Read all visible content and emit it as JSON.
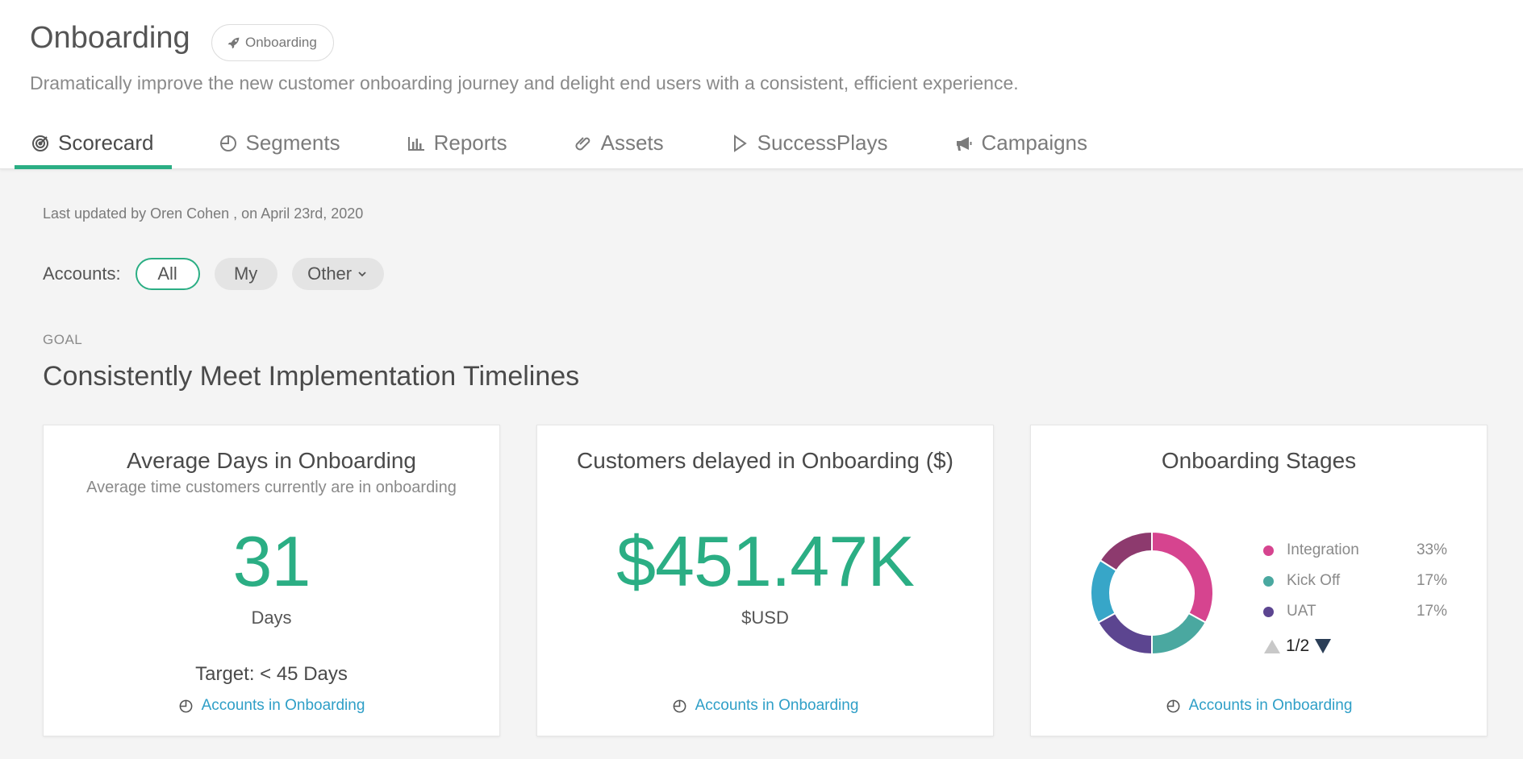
{
  "header": {
    "title": "Onboarding",
    "badge_label": "Onboarding",
    "subtitle": "Dramatically improve the new customer onboarding journey and delight end users with a consistent, efficient experience."
  },
  "tabs": [
    {
      "label": "Scorecard",
      "icon": "target-icon",
      "active": true
    },
    {
      "label": "Segments",
      "icon": "pie-chart-icon"
    },
    {
      "label": "Reports",
      "icon": "bar-chart-icon"
    },
    {
      "label": "Assets",
      "icon": "paperclip-icon"
    },
    {
      "label": "SuccessPlays",
      "icon": "play-icon"
    },
    {
      "label": "Campaigns",
      "icon": "megaphone-icon"
    }
  ],
  "updated_text": "Last updated by Oren Cohen , on April 23rd, 2020",
  "filters": {
    "label": "Accounts:",
    "options": [
      "All",
      "My",
      "Other"
    ],
    "selected": "All"
  },
  "goal": {
    "label": "GOAL",
    "title": "Consistently Meet Implementation Timelines"
  },
  "cards": [
    {
      "title": "Average Days in Onboarding",
      "subtitle": "Average time customers currently are in onboarding",
      "value": "31",
      "unit": "Days",
      "target": "Target: < 45 Days",
      "link": "Accounts in Onboarding"
    },
    {
      "title": "Customers delayed in Onboarding ($)",
      "value": "$451.47K",
      "unit": "$USD",
      "link": "Accounts in Onboarding"
    },
    {
      "title": "Onboarding Stages",
      "link": "Accounts in Onboarding",
      "pager": "1/2"
    }
  ],
  "chart_data": {
    "type": "pie",
    "variant": "donut",
    "title": "Onboarding Stages",
    "slices": [
      {
        "label": "Integration",
        "value": 33,
        "display": "33%",
        "color": "#d6448f"
      },
      {
        "label": "Kick Off",
        "value": 17,
        "display": "17%",
        "color": "#4aa8a0"
      },
      {
        "label": "UAT",
        "value": 17,
        "display": "17%",
        "color": "#5c4590"
      },
      {
        "value": 17,
        "color": "#37a6c8"
      },
      {
        "value": 16,
        "color": "#8d3a6e"
      }
    ],
    "legend_placement": "right"
  },
  "colors": {
    "accent": "#2bae84",
    "link": "#2f9fc7"
  }
}
